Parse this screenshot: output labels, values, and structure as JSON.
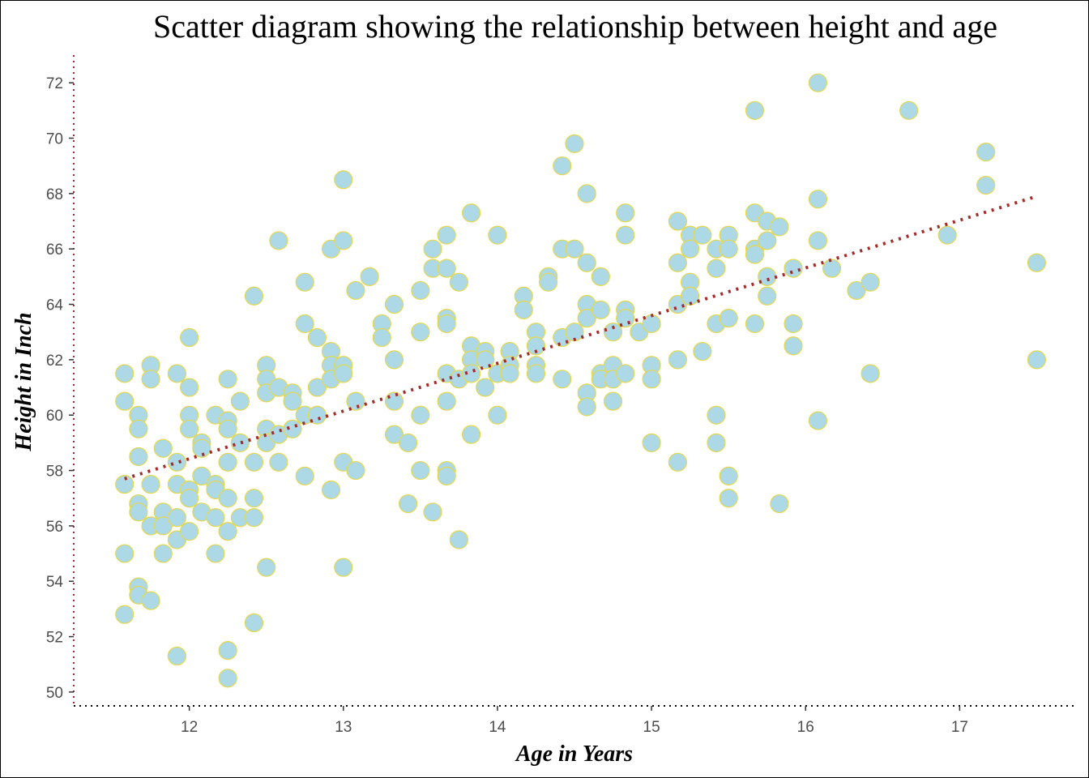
{
  "chart_data": {
    "type": "scatter",
    "title": "Scatter diagram showing the relationship between height and age",
    "xlabel": "Age in Years",
    "ylabel": "Height in Inch",
    "xlim": [
      11.25,
      17.75
    ],
    "ylim": [
      49.5,
      73.0
    ],
    "x_ticks": [
      12,
      13,
      14,
      15,
      16,
      17
    ],
    "y_ticks": [
      50,
      52,
      54,
      56,
      58,
      60,
      62,
      64,
      66,
      68,
      70,
      72
    ],
    "grid": false,
    "legend": "none",
    "point_fill": "#ADD8E6",
    "point_stroke": "#E5D84A",
    "trend_color": "#A52A2A",
    "axis_line_color": "#000000",
    "y_axis_line_color": "#A52A2A",
    "trendline": {
      "x": [
        11.58,
        17.5
      ],
      "y": [
        57.7,
        67.9
      ]
    },
    "points": [
      [
        11.58,
        61.5
      ],
      [
        11.58,
        60.5
      ],
      [
        11.58,
        57.5
      ],
      [
        11.58,
        55.0
      ],
      [
        11.58,
        52.8
      ],
      [
        11.67,
        60.0
      ],
      [
        11.67,
        59.5
      ],
      [
        11.67,
        58.5
      ],
      [
        11.67,
        56.8
      ],
      [
        11.67,
        56.5
      ],
      [
        11.67,
        53.8
      ],
      [
        11.67,
        53.5
      ],
      [
        11.75,
        61.8
      ],
      [
        11.75,
        61.3
      ],
      [
        11.75,
        57.5
      ],
      [
        11.75,
        56.0
      ],
      [
        11.75,
        53.3
      ],
      [
        11.83,
        58.8
      ],
      [
        11.83,
        56.5
      ],
      [
        11.83,
        56.0
      ],
      [
        11.83,
        55.0
      ],
      [
        11.92,
        61.5
      ],
      [
        11.92,
        58.3
      ],
      [
        11.92,
        57.5
      ],
      [
        11.92,
        56.3
      ],
      [
        11.92,
        55.5
      ],
      [
        11.92,
        51.3
      ],
      [
        12.0,
        62.8
      ],
      [
        12.0,
        61.0
      ],
      [
        12.0,
        60.0
      ],
      [
        12.0,
        59.5
      ],
      [
        12.0,
        57.3
      ],
      [
        12.0,
        57.0
      ],
      [
        12.0,
        55.8
      ],
      [
        12.08,
        59.0
      ],
      [
        12.08,
        58.8
      ],
      [
        12.08,
        57.8
      ],
      [
        12.08,
        56.5
      ],
      [
        12.17,
        60.0
      ],
      [
        12.17,
        57.5
      ],
      [
        12.17,
        57.3
      ],
      [
        12.17,
        56.3
      ],
      [
        12.17,
        55.0
      ],
      [
        12.25,
        61.3
      ],
      [
        12.25,
        59.8
      ],
      [
        12.25,
        59.5
      ],
      [
        12.25,
        58.3
      ],
      [
        12.25,
        57.0
      ],
      [
        12.25,
        55.8
      ],
      [
        12.25,
        51.5
      ],
      [
        12.25,
        50.5
      ],
      [
        12.33,
        60.5
      ],
      [
        12.33,
        59.0
      ],
      [
        12.33,
        56.3
      ],
      [
        12.42,
        64.3
      ],
      [
        12.42,
        58.3
      ],
      [
        12.42,
        57.0
      ],
      [
        12.42,
        56.3
      ],
      [
        12.42,
        52.5
      ],
      [
        12.5,
        61.8
      ],
      [
        12.5,
        61.3
      ],
      [
        12.5,
        60.8
      ],
      [
        12.5,
        59.5
      ],
      [
        12.5,
        59.0
      ],
      [
        12.5,
        54.5
      ],
      [
        12.58,
        66.3
      ],
      [
        12.58,
        61.0
      ],
      [
        12.58,
        59.3
      ],
      [
        12.58,
        58.3
      ],
      [
        12.67,
        60.8
      ],
      [
        12.67,
        60.5
      ],
      [
        12.67,
        59.5
      ],
      [
        12.75,
        64.8
      ],
      [
        12.75,
        63.3
      ],
      [
        12.75,
        60.0
      ],
      [
        12.75,
        57.8
      ],
      [
        12.83,
        62.8
      ],
      [
        12.83,
        61.0
      ],
      [
        12.83,
        60.0
      ],
      [
        12.92,
        66.0
      ],
      [
        12.92,
        62.3
      ],
      [
        12.92,
        61.8
      ],
      [
        12.92,
        61.3
      ],
      [
        12.92,
        57.3
      ],
      [
        13.0,
        68.5
      ],
      [
        13.0,
        66.3
      ],
      [
        13.0,
        61.8
      ],
      [
        13.0,
        61.5
      ],
      [
        13.0,
        58.3
      ],
      [
        13.0,
        54.5
      ],
      [
        13.08,
        64.5
      ],
      [
        13.08,
        60.5
      ],
      [
        13.08,
        58.0
      ],
      [
        13.17,
        65.0
      ],
      [
        13.25,
        63.3
      ],
      [
        13.25,
        62.8
      ],
      [
        13.33,
        64.0
      ],
      [
        13.33,
        62.0
      ],
      [
        13.33,
        60.5
      ],
      [
        13.33,
        59.3
      ],
      [
        13.42,
        59.0
      ],
      [
        13.42,
        56.8
      ],
      [
        13.5,
        64.5
      ],
      [
        13.5,
        63.0
      ],
      [
        13.5,
        60.0
      ],
      [
        13.5,
        58.0
      ],
      [
        13.58,
        66.0
      ],
      [
        13.58,
        65.3
      ],
      [
        13.58,
        56.5
      ],
      [
        13.67,
        66.5
      ],
      [
        13.67,
        65.3
      ],
      [
        13.67,
        63.5
      ],
      [
        13.67,
        63.3
      ],
      [
        13.67,
        61.5
      ],
      [
        13.67,
        60.5
      ],
      [
        13.67,
        58.0
      ],
      [
        13.67,
        57.8
      ],
      [
        13.75,
        64.8
      ],
      [
        13.75,
        61.3
      ],
      [
        13.75,
        55.5
      ],
      [
        13.83,
        67.3
      ],
      [
        13.83,
        62.5
      ],
      [
        13.83,
        62.0
      ],
      [
        13.83,
        61.5
      ],
      [
        13.83,
        59.3
      ],
      [
        13.92,
        62.3
      ],
      [
        13.92,
        62.0
      ],
      [
        13.92,
        61.0
      ],
      [
        14.0,
        66.5
      ],
      [
        14.0,
        61.5
      ],
      [
        14.0,
        60.0
      ],
      [
        14.08,
        62.3
      ],
      [
        14.08,
        61.8
      ],
      [
        14.08,
        61.5
      ],
      [
        14.17,
        64.3
      ],
      [
        14.17,
        63.8
      ],
      [
        14.25,
        63.0
      ],
      [
        14.25,
        62.5
      ],
      [
        14.25,
        61.8
      ],
      [
        14.25,
        61.5
      ],
      [
        14.33,
        65.0
      ],
      [
        14.33,
        64.8
      ],
      [
        14.42,
        69.0
      ],
      [
        14.42,
        66.0
      ],
      [
        14.42,
        62.8
      ],
      [
        14.42,
        61.3
      ],
      [
        14.5,
        69.8
      ],
      [
        14.5,
        66.0
      ],
      [
        14.5,
        63.0
      ],
      [
        14.58,
        68.0
      ],
      [
        14.58,
        65.5
      ],
      [
        14.58,
        64.0
      ],
      [
        14.58,
        63.5
      ],
      [
        14.58,
        60.8
      ],
      [
        14.58,
        60.3
      ],
      [
        14.67,
        65.0
      ],
      [
        14.67,
        63.8
      ],
      [
        14.67,
        61.5
      ],
      [
        14.67,
        61.3
      ],
      [
        14.75,
        63.0
      ],
      [
        14.75,
        61.8
      ],
      [
        14.75,
        61.3
      ],
      [
        14.75,
        60.5
      ],
      [
        14.83,
        67.3
      ],
      [
        14.83,
        66.5
      ],
      [
        14.83,
        63.8
      ],
      [
        14.83,
        63.5
      ],
      [
        14.83,
        61.5
      ],
      [
        14.92,
        63.0
      ],
      [
        15.0,
        63.3
      ],
      [
        15.0,
        61.8
      ],
      [
        15.0,
        61.3
      ],
      [
        15.0,
        59.0
      ],
      [
        15.17,
        67.0
      ],
      [
        15.17,
        65.5
      ],
      [
        15.17,
        64.0
      ],
      [
        15.17,
        62.0
      ],
      [
        15.17,
        58.3
      ],
      [
        15.25,
        66.5
      ],
      [
        15.25,
        66.0
      ],
      [
        15.25,
        64.8
      ],
      [
        15.25,
        64.3
      ],
      [
        15.33,
        66.5
      ],
      [
        15.33,
        62.3
      ],
      [
        15.42,
        66.0
      ],
      [
        15.42,
        65.3
      ],
      [
        15.42,
        63.3
      ],
      [
        15.42,
        60.0
      ],
      [
        15.42,
        59.0
      ],
      [
        15.5,
        66.5
      ],
      [
        15.5,
        66.0
      ],
      [
        15.5,
        63.5
      ],
      [
        15.5,
        57.8
      ],
      [
        15.5,
        57.0
      ],
      [
        15.67,
        71.0
      ],
      [
        15.67,
        67.3
      ],
      [
        15.67,
        66.0
      ],
      [
        15.67,
        65.8
      ],
      [
        15.67,
        63.3
      ],
      [
        15.75,
        67.0
      ],
      [
        15.75,
        66.3
      ],
      [
        15.75,
        65.0
      ],
      [
        15.75,
        64.3
      ],
      [
        15.83,
        66.8
      ],
      [
        15.83,
        56.8
      ],
      [
        15.92,
        65.3
      ],
      [
        15.92,
        63.3
      ],
      [
        15.92,
        62.5
      ],
      [
        16.08,
        72.0
      ],
      [
        16.08,
        67.8
      ],
      [
        16.08,
        66.3
      ],
      [
        16.08,
        59.8
      ],
      [
        16.17,
        65.3
      ],
      [
        16.33,
        64.5
      ],
      [
        16.42,
        64.8
      ],
      [
        16.42,
        61.5
      ],
      [
        16.67,
        71.0
      ],
      [
        16.92,
        66.5
      ],
      [
        17.17,
        69.5
      ],
      [
        17.17,
        68.3
      ],
      [
        17.5,
        65.5
      ],
      [
        17.5,
        62.0
      ]
    ]
  }
}
